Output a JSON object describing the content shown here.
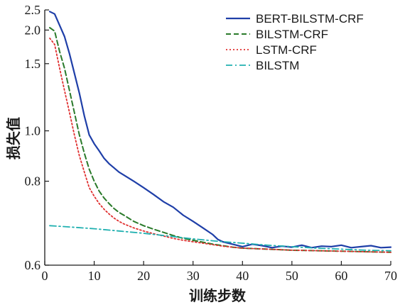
{
  "chart_data": {
    "type": "line",
    "title": "",
    "xlabel": "训练步数",
    "ylabel": "损失值",
    "xlim": [
      0,
      70
    ],
    "ylim": [
      0.6,
      2.5
    ],
    "xticks": [
      0,
      10,
      20,
      30,
      40,
      50,
      60,
      70
    ],
    "yticks": [
      0.6,
      0.8,
      1.0,
      1.5,
      2.0,
      2.5
    ],
    "ytick_labels": [
      "0.6",
      "0.8",
      "1.0",
      "1.5",
      "2.0",
      "2.5"
    ],
    "y_scale": "reciprocal",
    "grid": false,
    "legend_position": "top-right",
    "series": [
      {
        "name": "BERT-BILSTM-CRF",
        "color": "#1f3fa8",
        "style": "solid",
        "x": [
          1,
          2,
          3,
          4,
          5,
          6,
          7,
          8,
          9,
          10,
          11,
          12,
          13,
          14,
          15,
          16,
          18,
          20,
          22,
          24,
          26,
          28,
          30,
          32,
          34,
          35,
          36,
          38,
          40,
          42,
          44,
          46,
          48,
          50,
          52,
          54,
          56,
          58,
          60,
          62,
          64,
          66,
          68,
          70
        ],
        "y": [
          2.45,
          2.38,
          2.1,
          1.88,
          1.62,
          1.4,
          1.23,
          1.08,
          0.98,
          0.94,
          0.91,
          0.88,
          0.86,
          0.845,
          0.83,
          0.82,
          0.8,
          0.78,
          0.76,
          0.74,
          0.725,
          0.705,
          0.69,
          0.675,
          0.66,
          0.65,
          0.645,
          0.64,
          0.635,
          0.64,
          0.637,
          0.633,
          0.636,
          0.634,
          0.638,
          0.633,
          0.636,
          0.635,
          0.638,
          0.633,
          0.635,
          0.637,
          0.633,
          0.634
        ]
      },
      {
        "name": "BILSTM-CRF",
        "color": "#2a7a2a",
        "style": "dashed",
        "x": [
          1,
          2,
          3,
          4,
          5,
          6,
          7,
          8,
          9,
          10,
          11,
          12,
          13,
          14,
          15,
          16,
          18,
          20,
          22,
          24,
          26,
          28,
          30,
          32,
          34,
          36,
          38,
          40,
          45,
          50,
          55,
          60,
          65,
          70
        ],
        "y": [
          2.05,
          1.98,
          1.65,
          1.45,
          1.25,
          1.1,
          0.98,
          0.9,
          0.84,
          0.8,
          0.77,
          0.75,
          0.735,
          0.722,
          0.712,
          0.705,
          0.69,
          0.68,
          0.672,
          0.665,
          0.658,
          0.652,
          0.648,
          0.644,
          0.64,
          0.637,
          0.634,
          0.632,
          0.63,
          0.628,
          0.627,
          0.626,
          0.625,
          0.624
        ]
      },
      {
        "name": "LSTM-CRF",
        "color": "#e03030",
        "style": "dotted",
        "x": [
          1,
          2,
          3,
          4,
          5,
          6,
          7,
          8,
          9,
          10,
          11,
          12,
          13,
          14,
          15,
          16,
          18,
          20,
          22,
          24,
          26,
          28,
          30,
          32,
          34,
          36,
          38,
          40,
          45,
          50,
          55,
          60,
          65,
          70
        ],
        "y": [
          1.85,
          1.75,
          1.45,
          1.25,
          1.1,
          0.98,
          0.89,
          0.83,
          0.78,
          0.755,
          0.735,
          0.72,
          0.708,
          0.698,
          0.69,
          0.684,
          0.675,
          0.668,
          0.662,
          0.657,
          0.652,
          0.648,
          0.645,
          0.642,
          0.639,
          0.636,
          0.634,
          0.632,
          0.63,
          0.628,
          0.627,
          0.626,
          0.625,
          0.624
        ]
      },
      {
        "name": "BILSTM",
        "color": "#20b0b0",
        "style": "dashdot",
        "x": [
          1,
          5,
          10,
          15,
          20,
          25,
          30,
          35,
          40,
          45,
          50,
          55,
          60,
          65,
          70
        ],
        "y": [
          0.68,
          0.677,
          0.673,
          0.668,
          0.663,
          0.657,
          0.651,
          0.646,
          0.642,
          0.638,
          0.635,
          0.632,
          0.63,
          0.628,
          0.627
        ]
      }
    ]
  }
}
